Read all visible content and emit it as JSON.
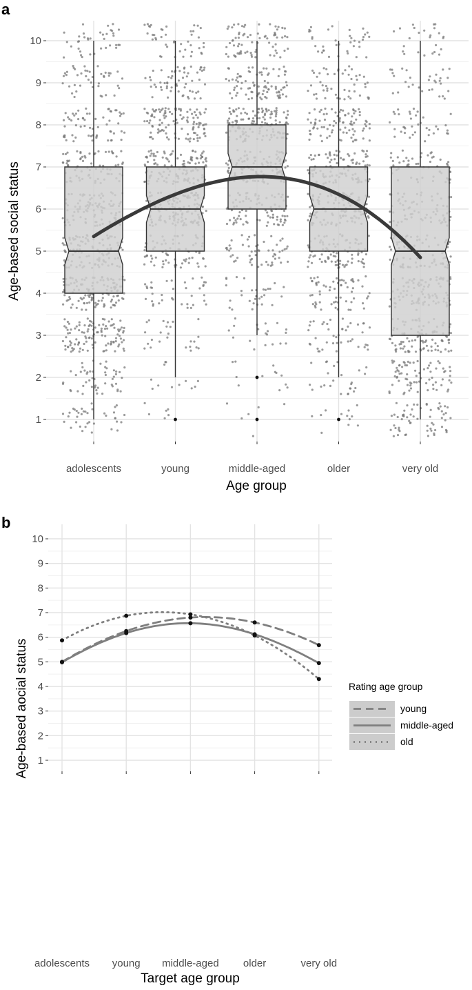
{
  "chart_data": [
    {
      "panel": "a",
      "type": "box",
      "xlabel": "Age group",
      "ylabel": "Age-based social status",
      "categories": [
        "adolescents",
        "young",
        "middle-aged",
        "older",
        "very old"
      ],
      "yticks": [
        1,
        2,
        3,
        4,
        5,
        6,
        7,
        8,
        9,
        10
      ],
      "ylim": [
        0.5,
        10.5
      ],
      "grid": true,
      "notched": true,
      "jittered_points": true,
      "boxes": [
        {
          "category": "adolescents",
          "whisker_low": 1,
          "q1": 4,
          "median": 5,
          "q3": 7,
          "whisker_high": 10,
          "outliers": []
        },
        {
          "category": "young",
          "whisker_low": 2,
          "q1": 5,
          "median": 6,
          "q3": 7,
          "whisker_high": 10,
          "outliers": [
            1
          ]
        },
        {
          "category": "middle-aged",
          "whisker_low": 3,
          "q1": 6,
          "median": 7,
          "q3": 8,
          "whisker_high": 10,
          "outliers": [
            2,
            1
          ]
        },
        {
          "category": "older",
          "whisker_low": 2,
          "q1": 5,
          "median": 6,
          "q3": 7,
          "whisker_high": 10,
          "outliers": [
            1
          ]
        },
        {
          "category": "very old",
          "whisker_low": 1,
          "q1": 3,
          "median": 5,
          "q3": 7,
          "whisker_high": 10,
          "outliers": []
        }
      ],
      "trend_curve": {
        "x": [
          1,
          2,
          3,
          4,
          5
        ],
        "y": [
          5.35,
          6.35,
          6.77,
          6.35,
          4.85
        ]
      }
    },
    {
      "panel": "b",
      "type": "line",
      "xlabel": "Target age group",
      "ylabel": "Age-based aocial status",
      "categories": [
        "adolescents",
        "young",
        "middle-aged",
        "older",
        "very old"
      ],
      "yticks": [
        1,
        2,
        3,
        4,
        5,
        6,
        7,
        8,
        9,
        10
      ],
      "ylim": [
        0.5,
        10.5
      ],
      "grid": true,
      "legend": {
        "title": "Rating age group",
        "position": "right"
      },
      "series": [
        {
          "name": "young",
          "dash": "dashed",
          "color": "#7f7f7f",
          "values": [
            5.0,
            6.25,
            6.8,
            6.6,
            5.68
          ]
        },
        {
          "name": "middle-aged",
          "dash": "solid",
          "color": "#7f7f7f",
          "values": [
            4.98,
            6.17,
            6.57,
            6.12,
            4.95
          ]
        },
        {
          "name": "old",
          "dash": "dotted",
          "color": "#7f7f7f",
          "values": [
            5.87,
            6.87,
            6.93,
            6.07,
            4.3
          ]
        }
      ]
    }
  ]
}
